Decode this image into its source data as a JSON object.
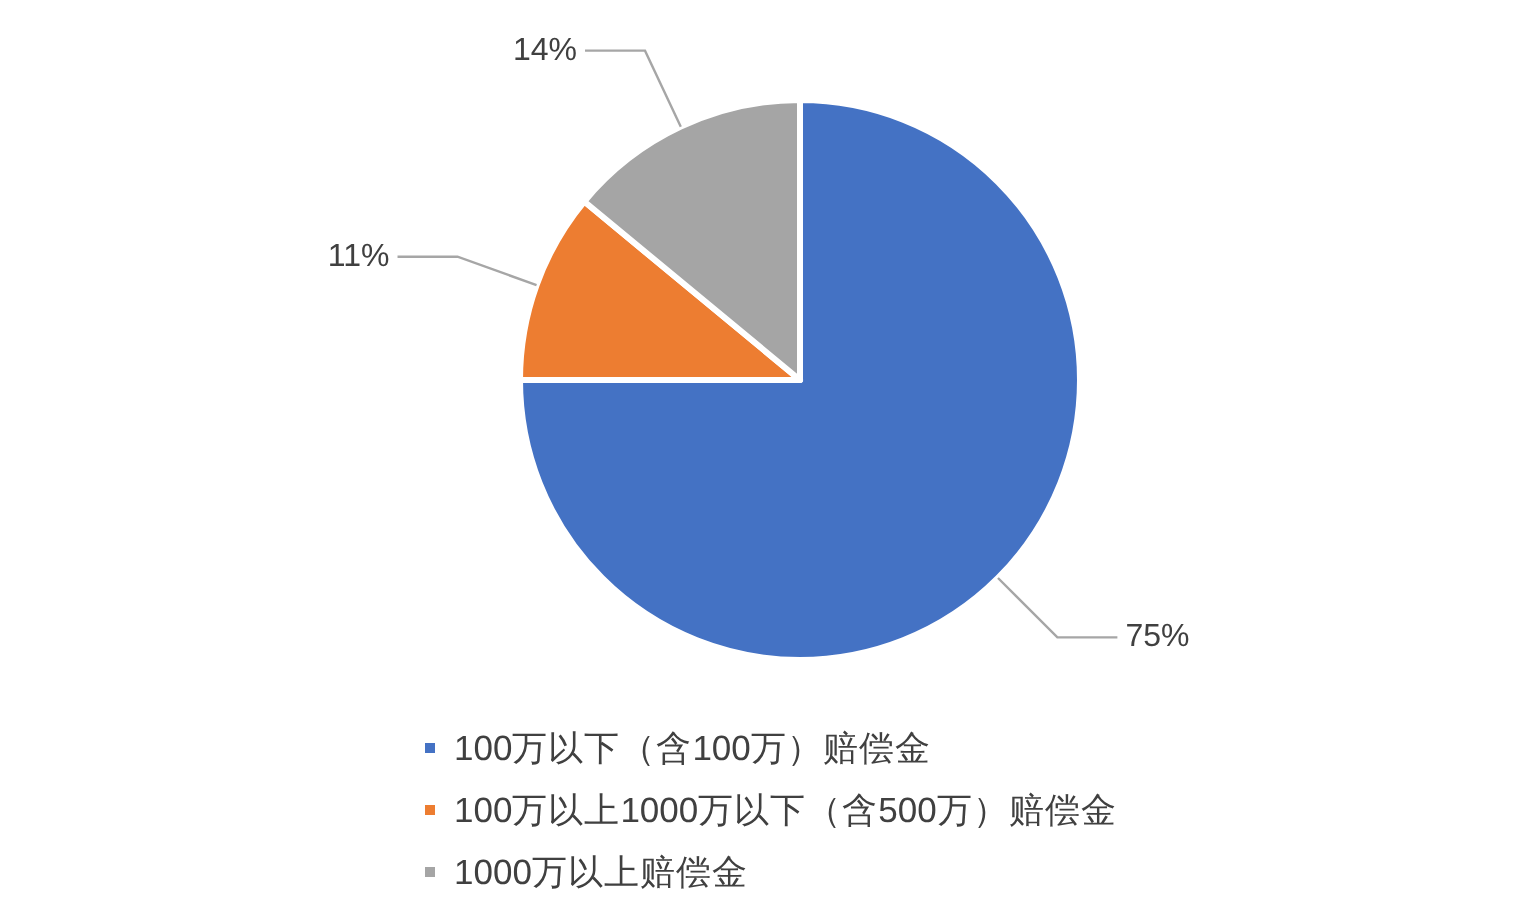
{
  "chart_data": {
    "type": "pie",
    "categories": [
      "100万以下（含100万）赔偿金",
      "100万以上1000万以下（含500万）赔偿金",
      "1000万以上赔偿金"
    ],
    "values": [
      75,
      11,
      14
    ],
    "colors": [
      "#4472c4",
      "#ed7d31",
      "#a5a5a5"
    ],
    "value_labels": [
      "75%",
      "11%",
      "14%"
    ],
    "legend": "bottom"
  }
}
